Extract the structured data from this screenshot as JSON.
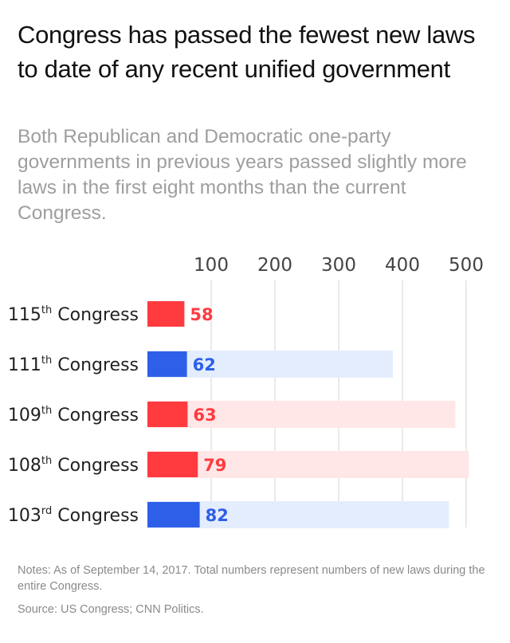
{
  "chart_data": {
    "type": "bar",
    "orientation": "horizontal",
    "title": "Congress has passed the fewest new laws to date of any recent unified government",
    "subtitle": "Both Republican and Democratic one-party governments in previous years passed slightly more laws in the first eight months than the current Congress.",
    "categories": [
      {
        "ordinal": "115",
        "suffix": "th",
        "label": "Congress"
      },
      {
        "ordinal": "111",
        "suffix": "th",
        "label": "Congress"
      },
      {
        "ordinal": "109",
        "suffix": "th",
        "label": "Congress"
      },
      {
        "ordinal": "108",
        "suffix": "th",
        "label": "Congress"
      },
      {
        "ordinal": "103",
        "suffix": "rd",
        "label": "Congress"
      }
    ],
    "series": [
      {
        "values": [
          58,
          62,
          63,
          79,
          82
        ]
      },
      {
        "values": [
          null,
          385,
          483,
          504,
          473
        ]
      }
    ],
    "bar_colors": [
      "#ff3b3f",
      "#2e5fe8",
      "#ff3b3f",
      "#ff3b3f",
      "#2e5fe8"
    ],
    "total_colors": [
      "#ffe6e7",
      "#e3edfd",
      "#ffe6e7",
      "#ffe6e7",
      "#e3edfd"
    ],
    "xticks": [
      100,
      200,
      300,
      400,
      500
    ],
    "xlim": [
      0,
      510
    ],
    "grid": true,
    "notes": "Notes: As of September 14, 2017. Total numbers represent numbers of new laws during the entire Congress.",
    "source": "Source: US Congress; CNN Politics."
  }
}
